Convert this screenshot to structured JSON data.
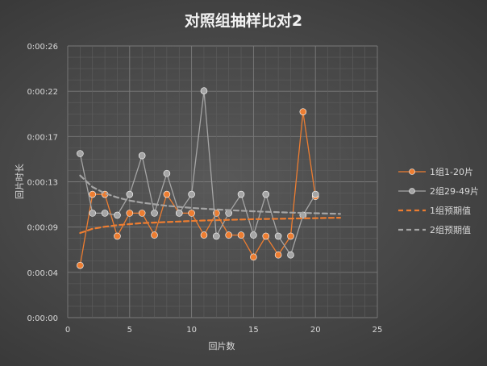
{
  "chart_data": {
    "type": "scatter",
    "title": "对照组抽样比对2",
    "xlabel": "回片数",
    "ylabel": "回片时长",
    "xlim": [
      0,
      25
    ],
    "ylim_seconds": [
      0,
      26
    ],
    "x_ticks": [
      "0",
      "5",
      "10",
      "15",
      "20",
      "25"
    ],
    "y_ticks": [
      "0:00:00",
      "0:00:04",
      "0:00:09",
      "0:00:13",
      "0:00:17",
      "0:00:22",
      "0:00:26"
    ],
    "grid": true,
    "legend_position": "right",
    "series": [
      {
        "name": "1组1-20片",
        "color": "#ed7d31",
        "style": "line-markers",
        "x": [
          1,
          2,
          3,
          4,
          5,
          6,
          7,
          8,
          9,
          10,
          11,
          12,
          13,
          14,
          15,
          16,
          17,
          18,
          19,
          20
        ],
        "y_seconds": [
          5.0,
          11.8,
          11.8,
          7.8,
          10.0,
          10.0,
          7.9,
          11.8,
          10.0,
          10.0,
          7.9,
          10.0,
          7.9,
          7.9,
          5.8,
          7.8,
          6.0,
          7.8,
          19.7,
          11.6
        ]
      },
      {
        "name": "2组29-49片",
        "color": "#a5a5a5",
        "style": "line-markers",
        "x": [
          1,
          2,
          3,
          4,
          5,
          6,
          7,
          8,
          9,
          10,
          11,
          12,
          13,
          14,
          15,
          16,
          17,
          18,
          19,
          20
        ],
        "y_seconds": [
          15.7,
          10.0,
          10.0,
          9.8,
          11.8,
          15.5,
          10.0,
          13.8,
          10.0,
          11.8,
          21.7,
          7.8,
          10.0,
          11.8,
          7.9,
          11.8,
          7.8,
          6.0,
          9.8,
          11.8
        ]
      },
      {
        "name": "1组预期值",
        "color": "#ed7d31",
        "style": "dashed-trend",
        "x": [
          1,
          2,
          3,
          4,
          5,
          6,
          7,
          8,
          9,
          10,
          11,
          12,
          13,
          14,
          15,
          16,
          17,
          18,
          19,
          20,
          21,
          22
        ],
        "y_seconds": [
          8.1,
          8.5,
          8.7,
          8.85,
          8.95,
          9.05,
          9.1,
          9.15,
          9.2,
          9.25,
          9.3,
          9.33,
          9.36,
          9.39,
          9.42,
          9.44,
          9.46,
          9.48,
          9.5,
          9.52,
          9.54,
          9.56
        ]
      },
      {
        "name": "2组预期值",
        "color": "#a5a5a5",
        "style": "dashed-trend",
        "x": [
          1,
          2,
          3,
          4,
          5,
          6,
          7,
          8,
          9,
          10,
          11,
          12,
          13,
          14,
          15,
          16,
          17,
          18,
          19,
          20,
          21,
          22
        ],
        "y_seconds": [
          13.6,
          12.5,
          11.9,
          11.5,
          11.2,
          11.0,
          10.85,
          10.7,
          10.6,
          10.5,
          10.42,
          10.35,
          10.29,
          10.23,
          10.18,
          10.13,
          10.09,
          10.05,
          10.02,
          9.99,
          9.96,
          9.93
        ]
      }
    ]
  }
}
